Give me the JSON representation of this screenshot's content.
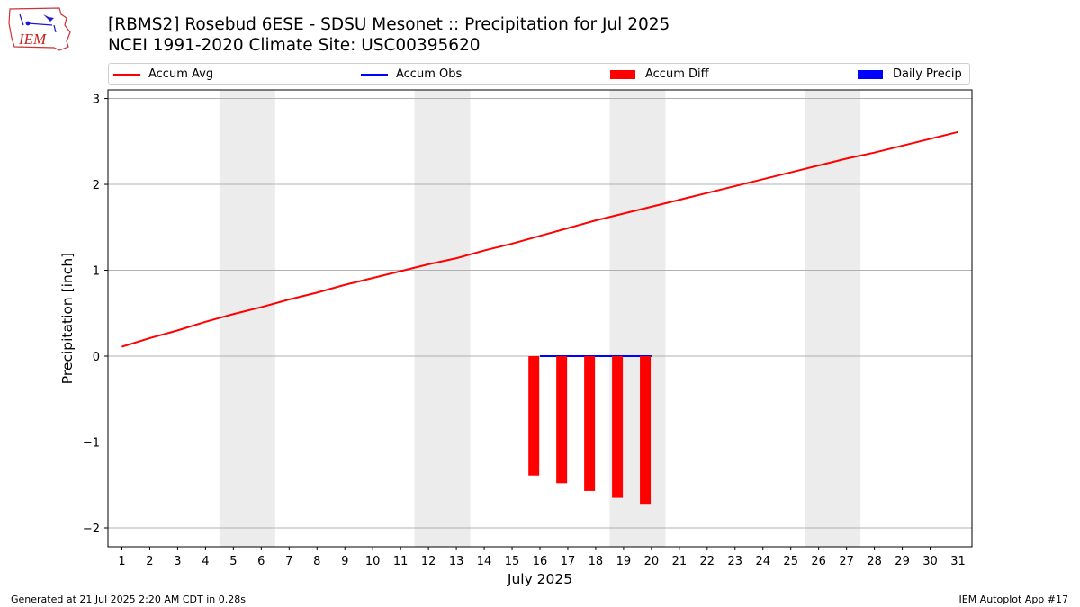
{
  "header": {
    "title_line1": "[RBMS2] Rosebud 6ESE - SDSU Mesonet :: Precipitation for Jul 2025",
    "title_line2": "NCEI 1991-2020 Climate Site: USC00395620",
    "logo_text": "IEM"
  },
  "legend": [
    {
      "label": "Accum Avg",
      "color": "#ff0000",
      "kind": "line"
    },
    {
      "label": "Accum Obs",
      "color": "#0000ff",
      "kind": "line"
    },
    {
      "label": "Accum Diff",
      "color": "#ff0000",
      "kind": "bar"
    },
    {
      "label": "Daily Precip",
      "color": "#0000ff",
      "kind": "bar"
    }
  ],
  "footer": {
    "generated": "Generated at 21 Jul 2025 2:20 AM CDT in 0.28s",
    "app": "IEM Autoplot App #17"
  },
  "chart_data": {
    "type": "line",
    "title": "[RBMS2] Rosebud 6ESE - SDSU Mesonet :: Precipitation for Jul 2025",
    "subtitle": "NCEI 1991-2020 Climate Site: USC00395620",
    "xlabel": "July 2025",
    "ylabel": "Precipitation [inch]",
    "x": [
      1,
      2,
      3,
      4,
      5,
      6,
      7,
      8,
      9,
      10,
      11,
      12,
      13,
      14,
      15,
      16,
      17,
      18,
      19,
      20,
      21,
      22,
      23,
      24,
      25,
      26,
      27,
      28,
      29,
      30,
      31
    ],
    "xlim": [
      0.5,
      31.5
    ],
    "ylim": [
      -2.22,
      3.1
    ],
    "yticks": [
      -2,
      -1,
      0,
      1,
      2,
      3
    ],
    "ytick_labels": [
      "−2",
      "−1",
      "0",
      "1",
      "2",
      "3"
    ],
    "grid": "horizontal",
    "legend_position": "top",
    "weekend_shading": [
      [
        4.5,
        6.5
      ],
      [
        11.5,
        13.5
      ],
      [
        18.5,
        20.5
      ],
      [
        25.5,
        27.5
      ]
    ],
    "series": [
      {
        "name": "Accum Avg",
        "type": "line",
        "color": "#ff0000",
        "x": [
          1,
          2,
          3,
          4,
          5,
          6,
          7,
          8,
          9,
          10,
          11,
          12,
          13,
          14,
          15,
          16,
          17,
          18,
          19,
          20,
          21,
          22,
          23,
          24,
          25,
          26,
          27,
          28,
          29,
          30,
          31
        ],
        "values": [
          0.11,
          0.21,
          0.3,
          0.4,
          0.49,
          0.57,
          0.66,
          0.74,
          0.83,
          0.91,
          0.99,
          1.07,
          1.14,
          1.23,
          1.31,
          1.4,
          1.49,
          1.58,
          1.66,
          1.74,
          1.82,
          1.9,
          1.98,
          2.06,
          2.14,
          2.22,
          2.3,
          2.37,
          2.45,
          2.53,
          2.61
        ]
      },
      {
        "name": "Accum Obs",
        "type": "line",
        "color": "#0000ff",
        "x": [
          16,
          17,
          18,
          19,
          20
        ],
        "values": [
          0.0,
          0.0,
          0.0,
          0.0,
          0.0
        ]
      },
      {
        "name": "Accum Diff",
        "type": "bar",
        "color": "#ff0000",
        "x": [
          16,
          17,
          18,
          19,
          20
        ],
        "values": [
          -1.39,
          -1.48,
          -1.57,
          -1.65,
          -1.73
        ]
      },
      {
        "name": "Daily Precip",
        "type": "bar",
        "color": "#0000ff",
        "x": [
          16,
          17,
          18,
          19,
          20
        ],
        "values": [
          0.0,
          0.0,
          0.0,
          0.0,
          0.0
        ]
      }
    ]
  }
}
